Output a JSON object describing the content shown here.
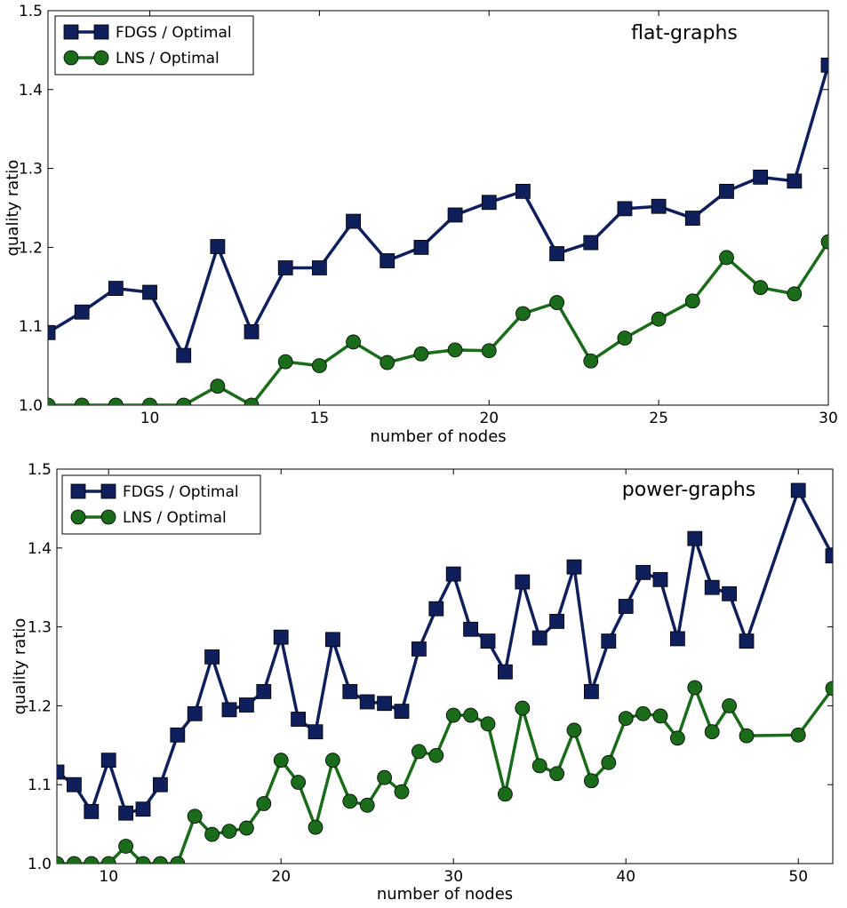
{
  "chart_data": [
    {
      "type": "line",
      "title": "",
      "annotation": "flat-graphs",
      "xlabel": "number of nodes",
      "ylabel": "quality ratio",
      "xlim": [
        7,
        30
      ],
      "ylim": [
        1.0,
        1.5
      ],
      "xticks": [
        10,
        15,
        20,
        25,
        30
      ],
      "yticks": [
        1.0,
        1.1,
        1.2,
        1.3,
        1.4,
        1.5
      ],
      "xtick_labels": [
        "10",
        "15",
        "20",
        "25",
        "30"
      ],
      "ytick_labels": [
        "1.0",
        "1.1",
        "1.2",
        "1.3",
        "1.4",
        "1.5"
      ],
      "legend_position": "top-left",
      "series": [
        {
          "name": "FDGS / Optimal",
          "color": "#0f1f5c",
          "marker": "square",
          "x": [
            7,
            8,
            9,
            10,
            11,
            12,
            13,
            14,
            15,
            16,
            17,
            18,
            19,
            20,
            21,
            22,
            23,
            24,
            25,
            26,
            27,
            28,
            29,
            30
          ],
          "values": [
            1.092,
            1.118,
            1.148,
            1.143,
            1.063,
            1.201,
            1.093,
            1.174,
            1.174,
            1.233,
            1.183,
            1.2,
            1.241,
            1.257,
            1.271,
            1.192,
            1.206,
            1.249,
            1.252,
            1.237,
            1.271,
            1.289,
            1.284,
            1.431
          ]
        },
        {
          "name": "LNS / Optimal",
          "color": "#1a6b1a",
          "marker": "circle",
          "x": [
            7,
            8,
            9,
            10,
            11,
            12,
            13,
            14,
            15,
            16,
            17,
            18,
            19,
            20,
            21,
            22,
            23,
            24,
            25,
            26,
            27,
            28,
            29,
            30
          ],
          "values": [
            1.0,
            1.0,
            1.0,
            1.0,
            1.0,
            1.024,
            1.0,
            1.055,
            1.05,
            1.08,
            1.054,
            1.065,
            1.07,
            1.069,
            1.116,
            1.13,
            1.056,
            1.085,
            1.109,
            1.132,
            1.187,
            1.149,
            1.141,
            1.207
          ]
        }
      ]
    },
    {
      "type": "line",
      "title": "",
      "annotation": "power-graphs",
      "xlabel": "number of nodes",
      "ylabel": "quality ratio",
      "xlim": [
        7,
        52
      ],
      "ylim": [
        1.0,
        1.5
      ],
      "xticks": [
        10,
        20,
        30,
        40,
        50
      ],
      "yticks": [
        1.0,
        1.1,
        1.2,
        1.3,
        1.4,
        1.5
      ],
      "xtick_labels": [
        "10",
        "20",
        "30",
        "40",
        "50"
      ],
      "ytick_labels": [
        "1.0",
        "1.1",
        "1.2",
        "1.3",
        "1.4",
        "1.5"
      ],
      "legend_position": "top-left",
      "series": [
        {
          "name": "FDGS / Optimal",
          "color": "#0f1f5c",
          "marker": "square",
          "x": [
            7,
            8,
            9,
            10,
            11,
            12,
            13,
            14,
            15,
            16,
            17,
            18,
            19,
            20,
            21,
            22,
            23,
            24,
            25,
            26,
            27,
            28,
            29,
            30,
            31,
            32,
            33,
            34,
            35,
            36,
            37,
            38,
            39,
            40,
            41,
            42,
            43,
            44,
            45,
            46,
            47,
            50,
            52
          ],
          "values": [
            1.116,
            1.1,
            1.066,
            1.131,
            1.064,
            1.069,
            1.1,
            1.163,
            1.19,
            1.262,
            1.195,
            1.201,
            1.218,
            1.287,
            1.183,
            1.167,
            1.284,
            1.218,
            1.205,
            1.203,
            1.193,
            1.272,
            1.323,
            1.367,
            1.297,
            1.282,
            1.243,
            1.357,
            1.286,
            1.307,
            1.376,
            1.218,
            1.282,
            1.326,
            1.369,
            1.36,
            1.285,
            1.412,
            1.35,
            1.342,
            1.282,
            1.473,
            1.39
          ]
        },
        {
          "name": "LNS / Optimal",
          "color": "#1a6b1a",
          "marker": "circle",
          "x": [
            7,
            8,
            9,
            10,
            11,
            12,
            13,
            14,
            15,
            16,
            17,
            18,
            19,
            20,
            21,
            22,
            23,
            24,
            25,
            26,
            27,
            28,
            29,
            30,
            31,
            32,
            33,
            34,
            35,
            36,
            37,
            38,
            39,
            40,
            41,
            42,
            43,
            44,
            45,
            46,
            47,
            50,
            52
          ],
          "values": [
            1.0,
            1.0,
            1.0,
            1.0,
            1.022,
            1.0,
            1.0,
            1.0,
            1.06,
            1.037,
            1.041,
            1.045,
            1.076,
            1.131,
            1.103,
            1.046,
            1.131,
            1.079,
            1.074,
            1.109,
            1.091,
            1.142,
            1.137,
            1.188,
            1.188,
            1.177,
            1.088,
            1.197,
            1.124,
            1.114,
            1.169,
            1.105,
            1.128,
            1.184,
            1.19,
            1.187,
            1.159,
            1.223,
            1.167,
            1.2,
            1.162,
            1.163,
            1.222
          ]
        }
      ]
    }
  ]
}
